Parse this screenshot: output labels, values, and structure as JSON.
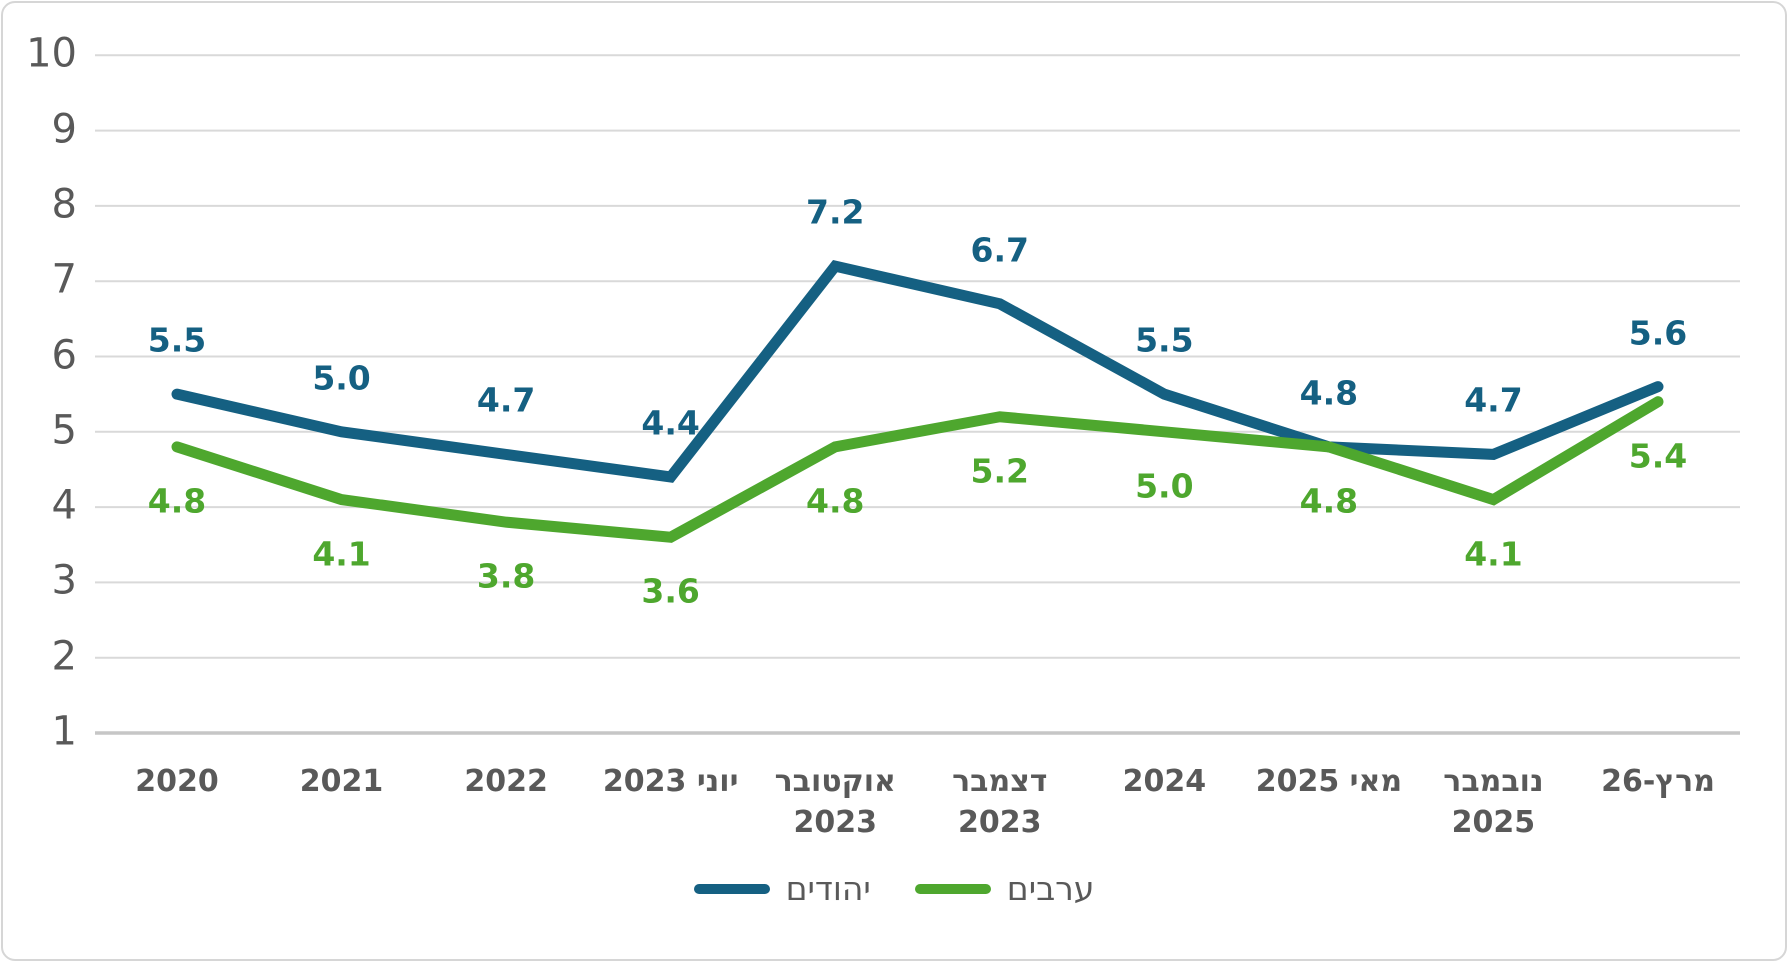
{
  "chart_data": {
    "type": "line",
    "categories": [
      "2020",
      "2021",
      "2022",
      "יוני 2023",
      "אוקטובר\n2023",
      "דצמבר\n2023",
      "2024",
      "מאי 2025",
      "נובמבר\n2025",
      "מרץ-26"
    ],
    "series": [
      {
        "name": "יהודים",
        "color": "#156082",
        "values": [
          5.5,
          5.0,
          4.7,
          4.4,
          7.2,
          6.7,
          5.5,
          4.8,
          4.7,
          5.6
        ],
        "label_position": "above"
      },
      {
        "name": "ערבים",
        "color": "#4EA72E",
        "values": [
          4.8,
          4.1,
          3.8,
          3.6,
          4.8,
          5.2,
          5.0,
          4.8,
          4.1,
          5.4
        ],
        "label_position": "below"
      }
    ],
    "title": "",
    "xlabel": "",
    "ylabel": "",
    "ylim": [
      1,
      10
    ],
    "ytick_step": 1,
    "yticks": [
      1,
      2,
      3,
      4,
      5,
      6,
      7,
      8,
      9,
      10
    ],
    "grid": "horizontal",
    "gridline_color": "#d9d9d9",
    "axis_line_color": "#c6c6c6",
    "tick_label_color": "#595959",
    "data_labels": true,
    "decimals": 1,
    "legend_position": "bottom"
  }
}
